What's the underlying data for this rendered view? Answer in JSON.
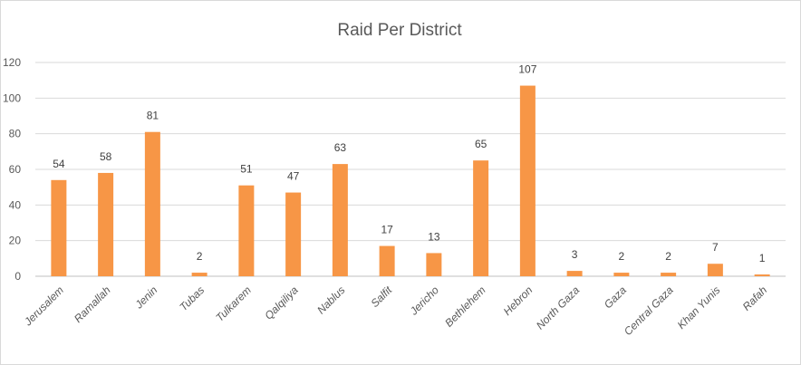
{
  "chart_data": {
    "type": "bar",
    "title": "Raid Per District",
    "xlabel": "",
    "ylabel": "",
    "categories": [
      "Jerusalem",
      "Ramallah",
      "Jenin",
      "Tubas",
      "Tulkarem",
      "Qalqiliya",
      "Nablus",
      "Salfit",
      "Jericho",
      "Bethlehem",
      "Hebron",
      "North Gaza",
      "Gaza",
      "Central Gaza",
      "Khan Yunis",
      "Rafah"
    ],
    "values": [
      54,
      58,
      81,
      2,
      51,
      47,
      63,
      17,
      13,
      65,
      107,
      3,
      2,
      2,
      7,
      1
    ],
    "ylim": [
      0,
      120
    ],
    "yticks": [
      0,
      20,
      40,
      60,
      80,
      100,
      120
    ],
    "grid": true,
    "legend": "none",
    "bar_color": "#F79646"
  }
}
